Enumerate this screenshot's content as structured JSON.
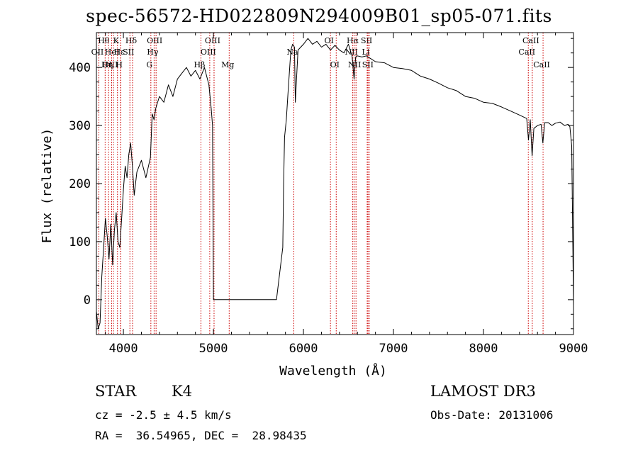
{
  "header": {
    "title": "spec-56572-HD022809N294009B01_sp05-071.fits"
  },
  "info": {
    "class_label": "STAR",
    "subclass": "K4",
    "survey": "LAMOST DR3",
    "cz": "cz = -2.5 ± 4.5 km/s",
    "obs_date": "Obs-Date: 20131006",
    "radec": "RA =  36.54965, DEC =  28.98435"
  },
  "colors": {
    "line": "#000000",
    "marker": "#cc0000"
  },
  "chart_data": {
    "type": "line",
    "title": "spec-56572-HD022809N294009B01_sp05-071.fits",
    "xlabel": "Wavelength (Å)",
    "ylabel": "Flux (relative)",
    "xlim": [
      3700,
      9000
    ],
    "ylim": [
      -60,
      460
    ],
    "xticks": [
      4000,
      5000,
      6000,
      7000,
      8000,
      9000
    ],
    "yticks": [
      0,
      100,
      200,
      300,
      400
    ],
    "series": [
      {
        "name": "flux",
        "x": [
          3700,
          3720,
          3740,
          3760,
          3780,
          3800,
          3820,
          3840,
          3860,
          3880,
          3900,
          3920,
          3940,
          3960,
          3980,
          4000,
          4020,
          4040,
          4060,
          4080,
          4100,
          4120,
          4150,
          4200,
          4250,
          4300,
          4320,
          4340,
          4360,
          4400,
          4450,
          4500,
          4550,
          4600,
          4650,
          4700,
          4750,
          4800,
          4850,
          4900,
          4950,
          4975,
          4990,
          5000,
          5100,
          5300,
          5500,
          5700,
          5770,
          5780,
          5790,
          5810,
          5830,
          5860,
          5880,
          5900,
          5910,
          5940,
          6000,
          6050,
          6100,
          6150,
          6200,
          6250,
          6300,
          6350,
          6400,
          6450,
          6500,
          6540,
          6563,
          6580,
          6600,
          6650,
          6700,
          6750,
          6800,
          6900,
          7000,
          7100,
          7200,
          7300,
          7400,
          7500,
          7600,
          7700,
          7800,
          7900,
          8000,
          8100,
          8200,
          8300,
          8400,
          8480,
          8500,
          8520,
          8540,
          8560,
          8600,
          8640,
          8660,
          8680,
          8720,
          8760,
          8800,
          8850,
          8900,
          8940,
          8960,
          8980,
          9000
        ],
        "y": [
          -20,
          -50,
          -40,
          40,
          90,
          140,
          110,
          70,
          130,
          60,
          120,
          150,
          100,
          90,
          140,
          190,
          230,
          210,
          250,
          270,
          230,
          180,
          220,
          240,
          210,
          245,
          320,
          310,
          330,
          350,
          340,
          370,
          350,
          380,
          390,
          400,
          385,
          395,
          380,
          400,
          370,
          330,
          300,
          0,
          0,
          0,
          0,
          0,
          90,
          200,
          280,
          310,
          360,
          430,
          440,
          435,
          340,
          430,
          440,
          450,
          440,
          445,
          435,
          440,
          430,
          438,
          430,
          425,
          440,
          420,
          380,
          418,
          420,
          418,
          420,
          415,
          410,
          408,
          400,
          398,
          395,
          385,
          380,
          373,
          365,
          360,
          350,
          347,
          340,
          338,
          332,
          325,
          318,
          312,
          275,
          310,
          248,
          295,
          300,
          302,
          270,
          305,
          305,
          300,
          304,
          306,
          300,
          302,
          298,
          265,
          -10
        ]
      }
    ],
    "line_markers": [
      {
        "label": "Hθ",
        "x": 3797,
        "row": 1
      },
      {
        "label": "OII",
        "x": 3727,
        "row": 2
      },
      {
        "label": "OIII",
        "x": 3869,
        "row": 3
      },
      {
        "label": "Hε",
        "x": 3970,
        "row": 2
      },
      {
        "label": "Hη",
        "x": 3835,
        "row": 3
      },
      {
        "label": "HeI",
        "x": 3889,
        "row": 2
      },
      {
        "label": "K",
        "x": 3934,
        "row": 1
      },
      {
        "label": "H",
        "x": 3969,
        "row": 3
      },
      {
        "label": "Hδ",
        "x": 4102,
        "row": 1
      },
      {
        "label": "SII",
        "x": 4072,
        "row": 2
      },
      {
        "label": "OIII",
        "x": 4363,
        "row": 1
      },
      {
        "label": "Hγ",
        "x": 4341,
        "row": 2
      },
      {
        "label": "G",
        "x": 4305,
        "row": 3
      },
      {
        "label": "OIII",
        "x": 5007,
        "row": 1
      },
      {
        "label": "OIII",
        "x": 4959,
        "row": 2
      },
      {
        "label": "Hβ",
        "x": 4861,
        "row": 3
      },
      {
        "label": "Mg",
        "x": 5175,
        "row": 3
      },
      {
        "label": "Na",
        "x": 5893,
        "row": 2
      },
      {
        "label": "OI",
        "x": 6300,
        "row": 1
      },
      {
        "label": "OI",
        "x": 6364,
        "row": 3
      },
      {
        "label": "Hα",
        "x": 6563,
        "row": 1
      },
      {
        "label": "NII",
        "x": 6548,
        "row": 2
      },
      {
        "label": "NII",
        "x": 6584,
        "row": 3
      },
      {
        "label": "SII",
        "x": 6717,
        "row": 1
      },
      {
        "label": "Li",
        "x": 6708,
        "row": 2
      },
      {
        "label": "SII",
        "x": 6731,
        "row": 3
      },
      {
        "label": "CaII",
        "x": 8542,
        "row": 1
      },
      {
        "label": "CaII",
        "x": 8498,
        "row": 2
      },
      {
        "label": "CaII",
        "x": 8662,
        "row": 3
      }
    ]
  }
}
